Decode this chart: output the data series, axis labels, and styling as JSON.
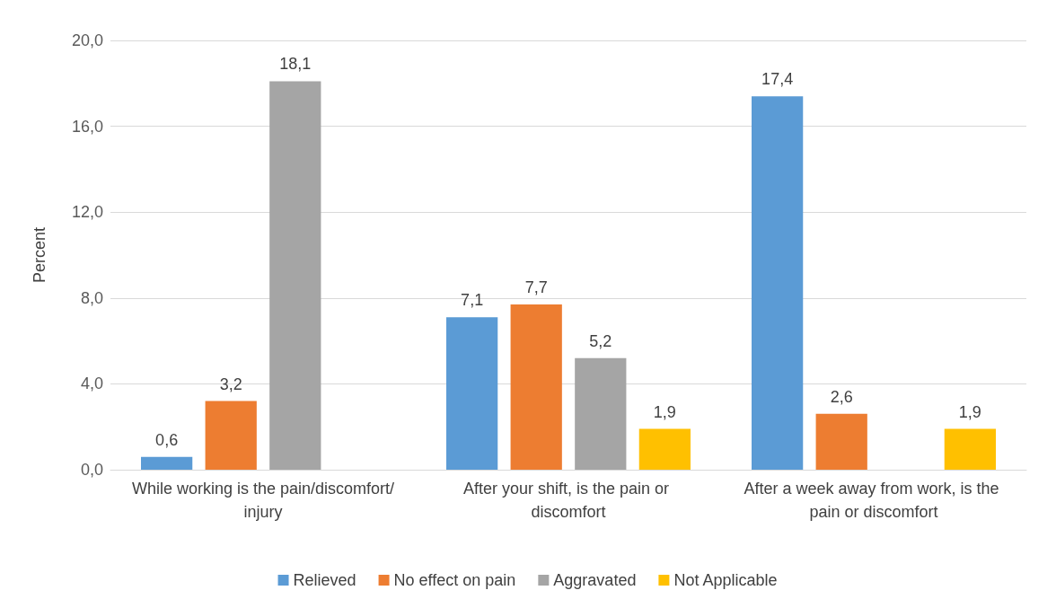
{
  "chart_data": {
    "type": "bar",
    "ylabel": "Percent",
    "categories": [
      "While working is the pain/discomfort/injury",
      "After your shift, is the pain or discomfort",
      "After a week away from work, is the pain or discomfort"
    ],
    "series": [
      {
        "name": "Relieved",
        "color": "#5b9bd5",
        "values": [
          0.6,
          7.1,
          17.4
        ],
        "value_labels": [
          "0,6",
          "7,1",
          "17,4"
        ]
      },
      {
        "name": "No effect on pain",
        "color": "#ed7d31",
        "values": [
          3.2,
          7.7,
          2.6
        ],
        "value_labels": [
          "3,2",
          "7,7",
          "2,6"
        ]
      },
      {
        "name": "Aggravated",
        "color": "#a5a5a5",
        "values": [
          18.1,
          5.2,
          null
        ],
        "value_labels": [
          "18,1",
          "5,2",
          null
        ]
      },
      {
        "name": "Not Applicable",
        "color": "#ffc000",
        "values": [
          null,
          1.9,
          1.9
        ],
        "value_labels": [
          null,
          "1,9",
          "1,9"
        ]
      }
    ],
    "ylim": [
      0,
      20
    ],
    "yticks": [
      {
        "value": 0,
        "label": "0,0"
      },
      {
        "value": 4,
        "label": "4,0"
      },
      {
        "value": 8,
        "label": "8,0"
      },
      {
        "value": 12,
        "label": "12,0"
      },
      {
        "value": 16,
        "label": "16,0"
      },
      {
        "value": 20,
        "label": "20,0"
      }
    ],
    "grid": "y",
    "legend": "bottom"
  }
}
